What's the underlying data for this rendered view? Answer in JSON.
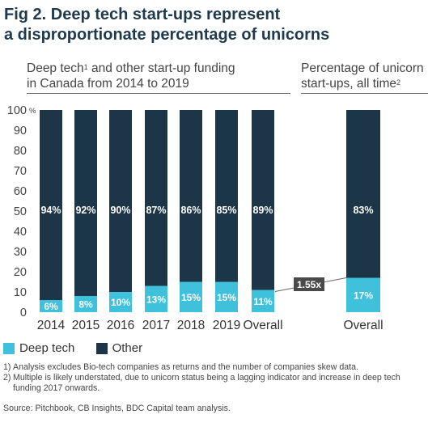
{
  "title_line1": "Fig 2. Deep tech start-ups represent",
  "title_line2": "a disproportionate percentage of unicorns",
  "left_subtitle": {
    "line1_a": "Deep tech",
    "line1_sup": "1",
    "line1_b": " and other start-up funding",
    "line2": "in Canada from 2014 to 2019"
  },
  "right_subtitle": {
    "line1": "Percentage of unicorn",
    "line2_a": "start-ups, all time",
    "line2_sup": "2"
  },
  "colors": {
    "deep_tech": "#3fc1dc",
    "other": "#1c3547",
    "callout": "#4a4a4a"
  },
  "chart_data": [
    {
      "type": "bar",
      "stacked": true,
      "ylim": [
        0,
        100
      ],
      "yticks": [
        0,
        10,
        20,
        30,
        40,
        50,
        60,
        70,
        80,
        90,
        100
      ],
      "yunit": "%",
      "categories": [
        "2014",
        "2015",
        "2016",
        "2017",
        "2018",
        "2019",
        "Overall"
      ],
      "series": [
        {
          "name": "Deep tech",
          "values": [
            6,
            8,
            10,
            13,
            15,
            15,
            11
          ],
          "labels": [
            "6%",
            "8%",
            "10%",
            "13%",
            "15%",
            "15%",
            "11%"
          ]
        },
        {
          "name": "Other",
          "values": [
            94,
            92,
            90,
            87,
            86,
            85,
            89
          ],
          "labels": [
            "94%",
            "92%",
            "90%",
            "87%",
            "86%",
            "85%",
            "89%"
          ]
        }
      ]
    },
    {
      "type": "bar",
      "stacked": true,
      "ylim": [
        0,
        100
      ],
      "categories": [
        "Overall"
      ],
      "series": [
        {
          "name": "Deep tech",
          "values": [
            17
          ],
          "labels": [
            "17%"
          ]
        },
        {
          "name": "Other",
          "values": [
            83
          ],
          "labels": [
            "83%"
          ]
        }
      ]
    }
  ],
  "multiple_callout": "1.55x",
  "legend": [
    {
      "label": "Deep tech",
      "color": "#3fc1dc"
    },
    {
      "label": "Other",
      "color": "#1c3547"
    }
  ],
  "footnotes": [
    {
      "num": "1)",
      "text": "Analysis excludes Bio-tech companies as returns and the number of companies skew data."
    },
    {
      "num": "2)",
      "text": "Multiple is likely understated, due to unicorn status being a lagging indicator and increase in deep tech funding 2017 onwards."
    }
  ],
  "source": "Source: Pitchbook, CB Insights, BDC Capital team analysis."
}
